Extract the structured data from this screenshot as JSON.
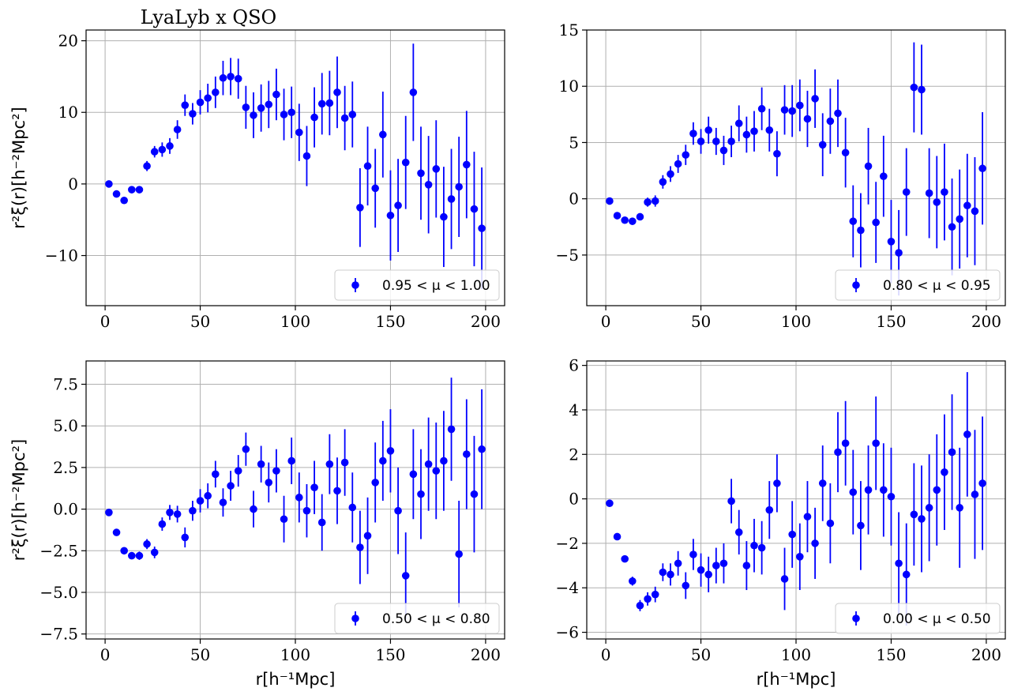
{
  "chart_data": [
    {
      "type": "scatter",
      "title": "LyaLyb x QSO",
      "xlabel": "",
      "ylabel": "r²ξ(r)[h⁻²Mpc²]",
      "xlim": [
        -10,
        210
      ],
      "ylim": [
        -17,
        21.5
      ],
      "xticks": [
        0,
        50,
        100,
        150,
        200
      ],
      "xtick_labels": [
        "0",
        "50",
        "100",
        "150",
        "200"
      ],
      "yticks": [
        -10,
        0,
        10,
        20
      ],
      "ytick_labels": [
        "−10",
        "0",
        "10",
        "20"
      ],
      "grid": true,
      "legend_position": "lower-right",
      "legend_label": "0.95 < μ < 1.00",
      "color": "#0000ff",
      "series": [
        {
          "name": "0.95 < μ < 1.00",
          "x": [
            2,
            6,
            10,
            14,
            18,
            22,
            26,
            30,
            34,
            38,
            42,
            46,
            50,
            54,
            58,
            62,
            66,
            70,
            74,
            78,
            82,
            86,
            90,
            94,
            98,
            102,
            106,
            110,
            114,
            118,
            122,
            126,
            130,
            134,
            138,
            142,
            146,
            150,
            154,
            158,
            162,
            166,
            170,
            174,
            178,
            182,
            186,
            190,
            194,
            198
          ],
          "y": [
            0,
            -1.4,
            -2.3,
            -0.8,
            -0.8,
            2.5,
            4.5,
            4.8,
            5.3,
            7.6,
            11,
            9.8,
            11.4,
            12,
            12.8,
            14.8,
            15,
            14.7,
            10.7,
            9.6,
            10.6,
            11.1,
            12.5,
            9.7,
            10,
            7.2,
            3.9,
            9.3,
            11.2,
            11.3,
            12.8,
            9.2,
            9.7,
            -3.3,
            2.5,
            -0.6,
            6.9,
            -4.4,
            -3,
            3,
            12.8,
            1.5,
            -0.1,
            2.1,
            -4.6,
            -2.1,
            -0.4,
            2.7,
            -3.5,
            -6.2
          ],
          "yerr": [
            0.3,
            0.3,
            0.3,
            0.4,
            0.5,
            0.7,
            0.8,
            1,
            1.1,
            1.3,
            1.5,
            1.5,
            1.7,
            2,
            2.2,
            2.4,
            2.6,
            2.8,
            3,
            3.2,
            3.3,
            3.3,
            3.6,
            3.6,
            3.6,
            4,
            4.2,
            4.2,
            4.3,
            4.5,
            5,
            4.5,
            4.6,
            5.5,
            5.5,
            5.5,
            6,
            6.3,
            6.5,
            6.5,
            6.8,
            6.5,
            6.8,
            6.8,
            7,
            7,
            7,
            7.5,
            8,
            8.5
          ]
        }
      ]
    },
    {
      "type": "scatter",
      "title": "",
      "xlabel": "",
      "ylabel": "",
      "xlim": [
        -10,
        210
      ],
      "ylim": [
        -9.5,
        15
      ],
      "xticks": [
        0,
        50,
        100,
        150,
        200
      ],
      "xtick_labels": [
        "0",
        "50",
        "100",
        "150",
        "200"
      ],
      "yticks": [
        -5,
        0,
        5,
        10,
        15
      ],
      "ytick_labels": [
        "−5",
        "0",
        "5",
        "10",
        "15"
      ],
      "grid": true,
      "legend_position": "lower-right",
      "legend_label": "0.80 < μ < 0.95",
      "color": "#0000ff",
      "series": [
        {
          "name": "0.80 < μ < 0.95",
          "x": [
            2,
            6,
            10,
            14,
            18,
            22,
            26,
            30,
            34,
            38,
            42,
            46,
            50,
            54,
            58,
            62,
            66,
            70,
            74,
            78,
            82,
            86,
            90,
            94,
            98,
            102,
            106,
            110,
            114,
            118,
            122,
            126,
            130,
            134,
            138,
            142,
            146,
            150,
            154,
            158,
            162,
            166,
            170,
            174,
            178,
            182,
            186,
            190,
            194,
            198
          ],
          "y": [
            -0.2,
            -1.5,
            -1.9,
            -2,
            -1.6,
            -0.3,
            -0.2,
            1.5,
            2.2,
            3.1,
            3.9,
            5.8,
            5.1,
            6.1,
            5.1,
            4.3,
            5.1,
            6.7,
            5.7,
            6,
            8,
            6.1,
            4,
            7.9,
            7.8,
            8.3,
            7.1,
            8.9,
            4.8,
            6.9,
            7.6,
            4.1,
            -2,
            -2.8,
            2.9,
            -2.1,
            2,
            -3.8,
            -4.8,
            0.6,
            9.9,
            9.7,
            0.5,
            -0.3,
            0.6,
            -2.5,
            -1.8,
            -0.6,
            -1.1,
            2.7
          ],
          "yerr": [
            0.2,
            0.2,
            0.2,
            0.3,
            0.3,
            0.4,
            0.5,
            0.6,
            0.7,
            0.8,
            0.9,
            1,
            1.1,
            1.2,
            1.2,
            1.3,
            1.4,
            1.6,
            1.6,
            1.8,
            1.9,
            1.9,
            2,
            2.2,
            2.3,
            2.3,
            2.5,
            2.6,
            2.8,
            2.9,
            3,
            3.1,
            3.2,
            3.3,
            3.4,
            3.6,
            3.6,
            3.7,
            3.8,
            3.9,
            4,
            4,
            4,
            4.1,
            4.3,
            4.3,
            4.4,
            4.6,
            4.8,
            5
          ]
        }
      ]
    },
    {
      "type": "scatter",
      "title": "",
      "xlabel": "r[h⁻¹Mpc]",
      "ylabel": "r²ξ(r)[h⁻²Mpc²]",
      "xlim": [
        -10,
        210
      ],
      "ylim": [
        -7.8,
        8.9
      ],
      "xticks": [
        0,
        50,
        100,
        150,
        200
      ],
      "xtick_labels": [
        "0",
        "50",
        "100",
        "150",
        "200"
      ],
      "yticks": [
        -7.5,
        -5,
        -2.5,
        0,
        2.5,
        5,
        7.5
      ],
      "ytick_labels": [
        "−7.5",
        "−5.0",
        "−2.5",
        "0.0",
        "2.5",
        "5.0",
        "7.5"
      ],
      "grid": true,
      "legend_position": "lower-right",
      "legend_label": "0.50 < μ < 0.80",
      "color": "#0000ff",
      "series": [
        {
          "name": "0.50 < μ < 0.80",
          "x": [
            2,
            6,
            10,
            14,
            18,
            22,
            26,
            30,
            34,
            38,
            42,
            46,
            50,
            54,
            58,
            62,
            66,
            70,
            74,
            78,
            82,
            86,
            90,
            94,
            98,
            102,
            106,
            110,
            114,
            118,
            122,
            126,
            130,
            134,
            138,
            142,
            146,
            150,
            154,
            158,
            162,
            166,
            170,
            174,
            178,
            182,
            186,
            190,
            194,
            198
          ],
          "y": [
            -0.2,
            -1.4,
            -2.5,
            -2.8,
            -2.8,
            -2.1,
            -2.6,
            -0.9,
            -0.2,
            -0.3,
            -1.7,
            -0.1,
            0.5,
            0.8,
            2.1,
            0.4,
            1.4,
            2.3,
            3.6,
            0,
            2.7,
            1.6,
            2.3,
            -0.6,
            2.9,
            0.7,
            -0.1,
            1.3,
            -0.8,
            2.7,
            1.1,
            2.8,
            0.1,
            -2.3,
            -1.6,
            1.6,
            2.9,
            3.5,
            -0.1,
            -4,
            2.1,
            0.9,
            2.7,
            2.3,
            2.9,
            4.8,
            -2.7,
            3.3,
            0.9,
            3.6
          ],
          "yerr": [
            0.15,
            0.15,
            0.2,
            0.2,
            0.25,
            0.3,
            0.35,
            0.4,
            0.45,
            0.5,
            0.6,
            0.6,
            0.7,
            0.75,
            0.8,
            0.85,
            0.9,
            0.95,
            1,
            1.1,
            1.1,
            1.2,
            1.3,
            1.4,
            1.4,
            1.5,
            1.6,
            1.6,
            1.7,
            1.8,
            2,
            2,
            2.1,
            2.2,
            2.3,
            2.4,
            2.4,
            2.5,
            2.6,
            2.6,
            2.7,
            2.7,
            2.8,
            2.9,
            3,
            3.1,
            3.2,
            3.3,
            3.5,
            3.6
          ]
        }
      ]
    },
    {
      "type": "scatter",
      "title": "",
      "xlabel": "r[h⁻¹Mpc]",
      "ylabel": "",
      "xlim": [
        -10,
        210
      ],
      "ylim": [
        -6.3,
        6.2
      ],
      "xticks": [
        0,
        50,
        100,
        150,
        200
      ],
      "xtick_labels": [
        "0",
        "50",
        "100",
        "150",
        "200"
      ],
      "yticks": [
        -6,
        -4,
        -2,
        0,
        2,
        4,
        6
      ],
      "ytick_labels": [
        "−6",
        "−4",
        "−2",
        "0",
        "2",
        "4",
        "6"
      ],
      "grid": true,
      "legend_position": "lower-right",
      "legend_label": "0.00 < μ < 0.50",
      "color": "#0000ff",
      "series": [
        {
          "name": "0.00 < μ < 0.50",
          "x": [
            2,
            6,
            10,
            14,
            18,
            22,
            26,
            30,
            34,
            38,
            42,
            46,
            50,
            54,
            58,
            62,
            66,
            70,
            74,
            78,
            82,
            86,
            90,
            94,
            98,
            102,
            106,
            110,
            114,
            118,
            122,
            126,
            130,
            134,
            138,
            142,
            146,
            150,
            154,
            158,
            162,
            166,
            170,
            174,
            178,
            182,
            186,
            190,
            194,
            198
          ],
          "y": [
            -0.2,
            -1.7,
            -2.7,
            -3.7,
            -4.8,
            -4.5,
            -4.3,
            -3.3,
            -3.4,
            -2.9,
            -3.9,
            -2.5,
            -3.2,
            -3.4,
            -3,
            -2.9,
            -0.1,
            -1.5,
            -3,
            -2.1,
            -2.2,
            -0.5,
            0.7,
            -3.6,
            -1.6,
            -2.6,
            -0.8,
            -2,
            0.7,
            -1.1,
            2.1,
            2.5,
            0.3,
            -1.2,
            0.4,
            2.5,
            0.4,
            0.1,
            -2.9,
            -3.4,
            -0.7,
            -0.9,
            -0.4,
            0.4,
            1.2,
            2.1,
            -0.4,
            2.9,
            0.2,
            0.7
          ],
          "yerr": [
            0.1,
            0.1,
            0.15,
            0.2,
            0.25,
            0.3,
            0.35,
            0.4,
            0.5,
            0.55,
            0.6,
            0.7,
            0.75,
            0.8,
            0.8,
            0.9,
            1,
            1,
            1.1,
            1.2,
            1.2,
            1.3,
            1.3,
            1.4,
            1.5,
            1.5,
            1.6,
            1.6,
            1.7,
            1.8,
            1.8,
            1.9,
            1.9,
            2,
            2,
            2.1,
            2.1,
            2.2,
            2.3,
            2.3,
            2.3,
            2.4,
            2.4,
            2.5,
            2.6,
            2.6,
            2.7,
            2.8,
            2.9,
            3
          ]
        }
      ]
    }
  ]
}
